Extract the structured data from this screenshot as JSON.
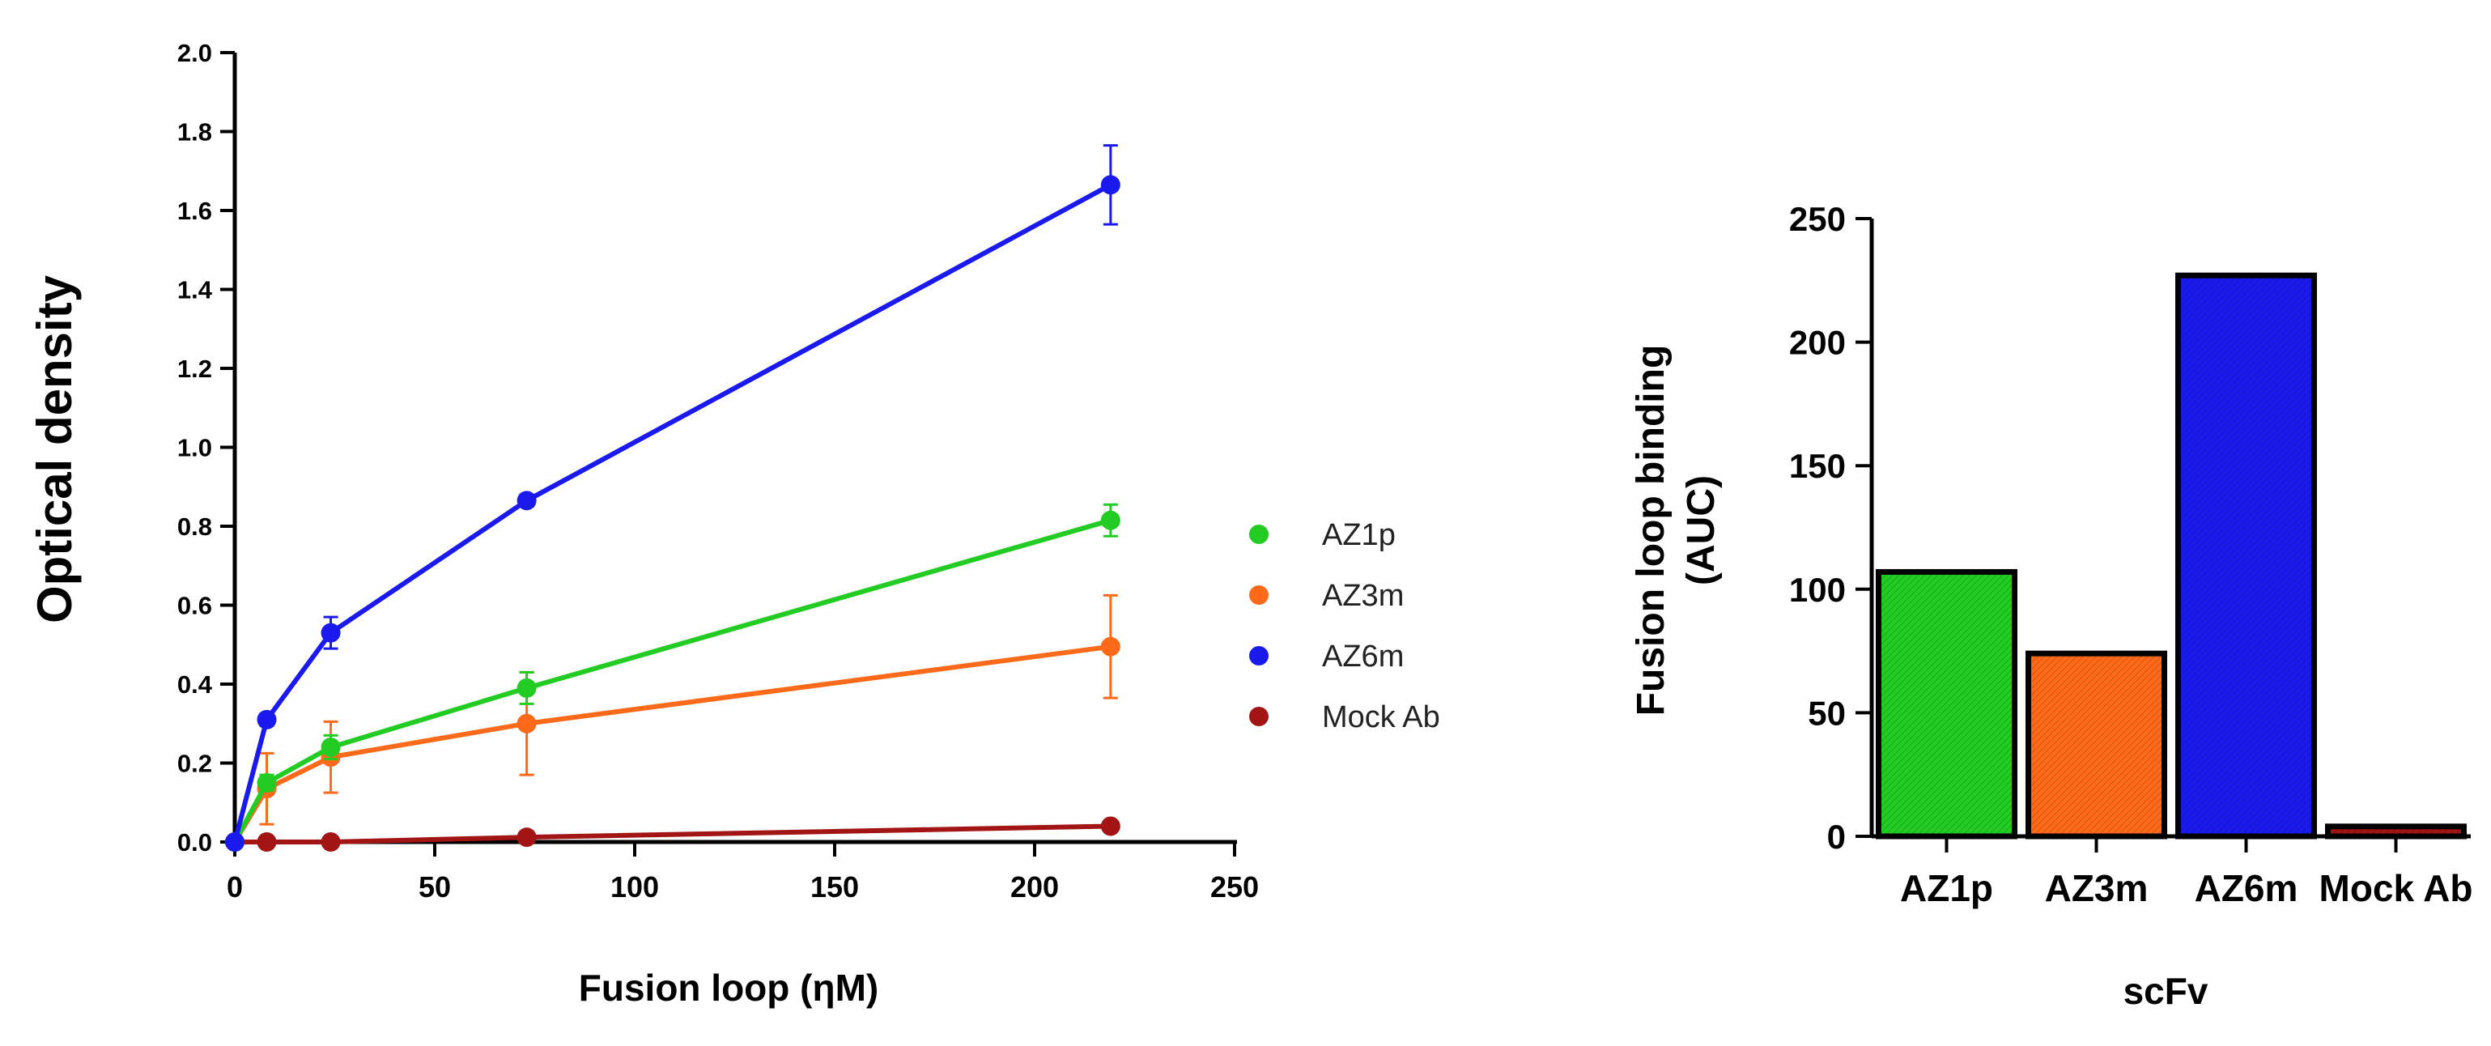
{
  "chart_data": [
    {
      "type": "line",
      "xlabel": "Fusion loop (ηM)",
      "ylabel": "Optical density",
      "xlim": [
        0,
        250
      ],
      "ylim": [
        0,
        2.0
      ],
      "xticks": [
        "0",
        "50",
        "100",
        "150",
        "200",
        "250"
      ],
      "yticks": [
        "0.0",
        "0.2",
        "0.4",
        "0.6",
        "0.8",
        "1.0",
        "1.2",
        "1.4",
        "1.6",
        "1.8",
        "2.0"
      ],
      "x": [
        0,
        8,
        24,
        73,
        219
      ],
      "legend_position": "right",
      "series": [
        {
          "name": "AZ1p",
          "color": "#22cc22",
          "values": [
            0.0,
            0.15,
            0.24,
            0.39,
            0.815
          ],
          "errors": [
            0,
            0.02,
            0.03,
            0.04,
            0.04
          ]
        },
        {
          "name": "AZ3m",
          "color": "#ff6a1a",
          "values": [
            0.0,
            0.135,
            0.215,
            0.3,
            0.495
          ],
          "errors": [
            0,
            0.09,
            0.09,
            0.13,
            0.13
          ]
        },
        {
          "name": "AZ6m",
          "color": "#1a1aee",
          "values": [
            0.0,
            0.31,
            0.53,
            0.865,
            1.665
          ],
          "errors": [
            0,
            0.015,
            0.04,
            0.015,
            0.1
          ]
        },
        {
          "name": "Mock Ab",
          "color": "#a31515",
          "values": [
            0.0,
            0.0,
            0.0,
            0.012,
            0.04
          ],
          "errors": [
            0,
            0,
            0,
            0.005,
            0.005
          ]
        }
      ]
    },
    {
      "type": "bar",
      "xlabel": "scFv",
      "ylabel": "Fusion loop binding (AUC)",
      "ylabel_lines": [
        "Fusion loop binding",
        "(AUC)"
      ],
      "ylim": [
        0,
        250
      ],
      "yticks": [
        "0",
        "50",
        "100",
        "150",
        "200",
        "250"
      ],
      "categories": [
        "AZ1p",
        "AZ3m",
        "AZ6m",
        "Mock Ab"
      ],
      "values": [
        107,
        74,
        227,
        4
      ],
      "colors": [
        "#22cc22",
        "#ff6a1a",
        "#1a1aee",
        "#a31515"
      ]
    }
  ]
}
